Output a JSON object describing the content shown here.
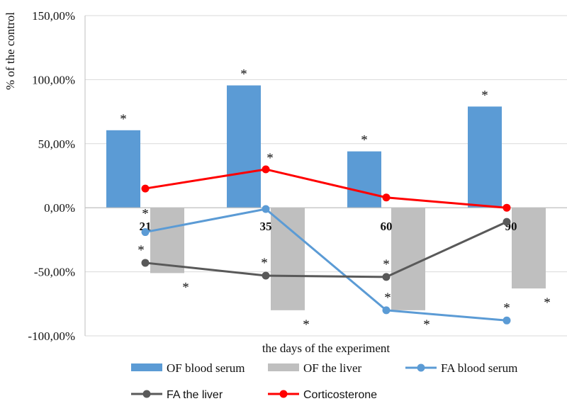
{
  "chart_data": {
    "type": "bar",
    "xlabel": "the days of the experiment",
    "ylabel": "% of the control",
    "categories": [
      "21",
      "35",
      "60",
      "90"
    ],
    "ylim": [
      -100,
      150
    ],
    "yticks": [
      150,
      100,
      50,
      0,
      -50,
      -100
    ],
    "ytick_labels": [
      "150,00%",
      "100,00%",
      "50,00%",
      "0,00%",
      "-50,00%",
      "-100,00%"
    ],
    "grid": "horizontal",
    "legend_position": "bottom",
    "significance_marker": "*",
    "series": [
      {
        "name": "OF blood serum",
        "kind": "bar",
        "color": "#5b9bd5",
        "values": [
          60.5,
          95.5,
          44,
          79
        ]
      },
      {
        "name": "OF the liver",
        "kind": "bar",
        "color": "#bfbfbf",
        "values": [
          -51,
          -80,
          -80,
          -63
        ]
      },
      {
        "name": "FA blood serum",
        "kind": "line",
        "color": "#5b9bd5",
        "values": [
          -19,
          -1,
          -80,
          -88
        ]
      },
      {
        "name": "FA the liver",
        "kind": "line",
        "color": "#595959",
        "values": [
          -43,
          -53,
          -54,
          -11
        ]
      },
      {
        "name": "Corticosterone",
        "kind": "line",
        "color": "#ff0000",
        "values": [
          15,
          30,
          8,
          0
        ]
      }
    ]
  }
}
